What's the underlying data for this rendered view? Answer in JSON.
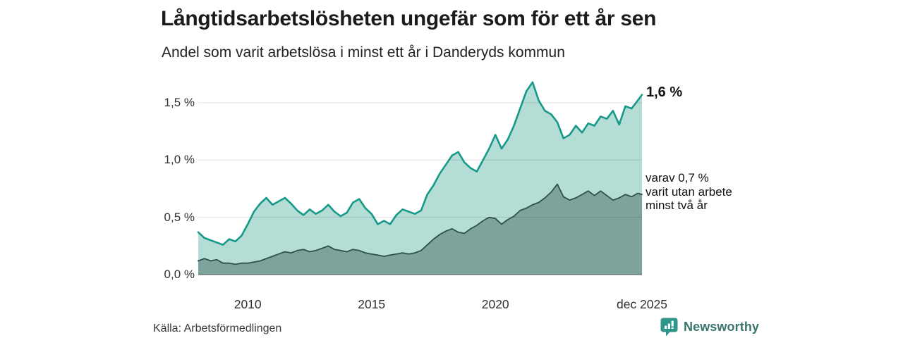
{
  "header": {
    "title": "Långtidsarbetslösheten ungefär som för ett år sen",
    "subtitle": "Andel som varit arbetslösa i minst ett år i Danderyds kommun"
  },
  "chart_data": {
    "type": "area",
    "title": "Långtidsarbetslösheten ungefär som för ett år sen",
    "subtitle": "Andel som varit arbetslösa i minst ett år i Danderyds kommun",
    "ylabel": "",
    "xlabel": "",
    "ylim": [
      0,
      1.75
    ],
    "xlim": [
      2008.0,
      2025.92
    ],
    "grid": "horizontal",
    "x": [
      2008.0,
      2008.25,
      2008.5,
      2008.75,
      2009.0,
      2009.25,
      2009.5,
      2009.75,
      2010.0,
      2010.25,
      2010.5,
      2010.75,
      2011.0,
      2011.25,
      2011.5,
      2011.75,
      2012.0,
      2012.25,
      2012.5,
      2012.75,
      2013.0,
      2013.25,
      2013.5,
      2013.75,
      2014.0,
      2014.25,
      2014.5,
      2014.75,
      2015.0,
      2015.25,
      2015.5,
      2015.75,
      2016.0,
      2016.25,
      2016.5,
      2016.75,
      2017.0,
      2017.25,
      2017.5,
      2017.75,
      2018.0,
      2018.25,
      2018.5,
      2018.75,
      2019.0,
      2019.25,
      2019.5,
      2019.75,
      2020.0,
      2020.25,
      2020.5,
      2020.75,
      2021.0,
      2021.25,
      2021.5,
      2021.75,
      2022.0,
      2022.25,
      2022.5,
      2022.75,
      2023.0,
      2023.25,
      2023.5,
      2023.75,
      2024.0,
      2024.25,
      2024.5,
      2024.75,
      2025.0,
      2025.25,
      2025.5,
      2025.75,
      2025.92
    ],
    "series": [
      {
        "name": "Andel som varit arbetslösa i minst ett år",
        "end_label": "1,6 %",
        "end_value_pct": 1.6,
        "line_color": "#17998a",
        "fill_color": "#b4ddd6",
        "line_width": 2.6,
        "values": [
          0.37,
          0.32,
          0.3,
          0.28,
          0.26,
          0.31,
          0.29,
          0.34,
          0.44,
          0.55,
          0.62,
          0.67,
          0.61,
          0.64,
          0.67,
          0.62,
          0.56,
          0.52,
          0.57,
          0.53,
          0.56,
          0.61,
          0.55,
          0.51,
          0.54,
          0.63,
          0.66,
          0.58,
          0.53,
          0.44,
          0.47,
          0.44,
          0.52,
          0.57,
          0.55,
          0.53,
          0.56,
          0.7,
          0.78,
          0.88,
          0.96,
          1.04,
          1.07,
          0.98,
          0.93,
          0.9,
          1.0,
          1.1,
          1.22,
          1.1,
          1.18,
          1.3,
          1.45,
          1.6,
          1.68,
          1.52,
          1.43,
          1.4,
          1.33,
          1.19,
          1.22,
          1.3,
          1.24,
          1.32,
          1.3,
          1.38,
          1.36,
          1.43,
          1.31,
          1.47,
          1.45,
          1.52,
          1.57
        ]
      },
      {
        "name": "varav varit utan arbete minst två år",
        "end_label": "varav 0,7 %\nvarit utan arbete\nminst två år",
        "end_value_pct": 0.7,
        "line_color": "#2f4f4a",
        "fill_color": "#7ca49d",
        "line_width": 1.8,
        "values": [
          0.12,
          0.14,
          0.12,
          0.13,
          0.1,
          0.1,
          0.09,
          0.1,
          0.1,
          0.11,
          0.12,
          0.14,
          0.16,
          0.18,
          0.2,
          0.19,
          0.21,
          0.22,
          0.2,
          0.21,
          0.23,
          0.25,
          0.22,
          0.21,
          0.2,
          0.22,
          0.21,
          0.19,
          0.18,
          0.17,
          0.16,
          0.17,
          0.18,
          0.19,
          0.18,
          0.19,
          0.21,
          0.26,
          0.31,
          0.35,
          0.38,
          0.4,
          0.37,
          0.36,
          0.4,
          0.43,
          0.47,
          0.5,
          0.49,
          0.44,
          0.48,
          0.51,
          0.56,
          0.58,
          0.61,
          0.63,
          0.67,
          0.72,
          0.79,
          0.68,
          0.65,
          0.67,
          0.7,
          0.73,
          0.69,
          0.73,
          0.69,
          0.65,
          0.67,
          0.7,
          0.68,
          0.71,
          0.7
        ]
      }
    ],
    "yticks": [
      {
        "label": "0,0 %",
        "value": 0.0
      },
      {
        "label": "0,5 %",
        "value": 0.5
      },
      {
        "label": "1,0 %",
        "value": 1.0
      },
      {
        "label": "1,5 %",
        "value": 1.5
      }
    ],
    "xticks": [
      {
        "label": "2010",
        "year": 2010.0
      },
      {
        "label": "2015",
        "year": 2015.0
      },
      {
        "label": "2020",
        "year": 2020.0
      },
      {
        "label": "dec 2025",
        "year": 2025.92
      }
    ],
    "legend_position": "line-end-annotations"
  },
  "footer": {
    "source": "Källa: Arbetsförmedlingen",
    "brand": "Newsworthy"
  },
  "colors": {
    "accent_teal": "#17998a",
    "light_fill": "#b4ddd6",
    "dark_fill": "#7ca49d",
    "dark_line": "#2f4f4a",
    "gridline": "rgba(0,0,0,0.12)",
    "baseline": "rgba(40,40,40,0.45)",
    "brand_teal": "#2f968c",
    "brand_text": "#3a756e"
  }
}
